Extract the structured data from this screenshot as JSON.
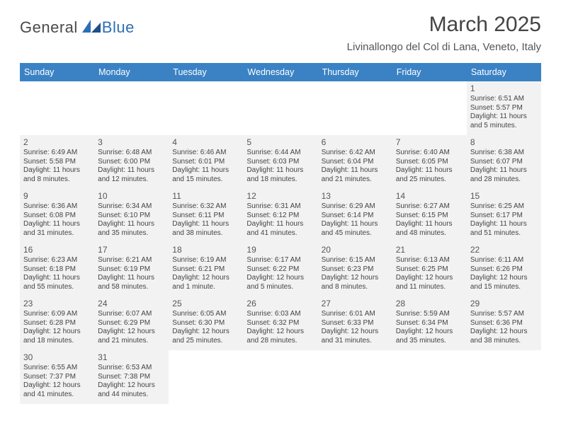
{
  "logo": {
    "part1": "General",
    "part2": "Blue"
  },
  "title": "March 2025",
  "location": "Livinallongo del Col di Lana, Veneto, Italy",
  "colors": {
    "header_bg": "#3b82c4",
    "cell_fill": "#f2f2f2",
    "border": "#3b82c4",
    "logo_accent": "#2d6fb5"
  },
  "weekdays": [
    "Sunday",
    "Monday",
    "Tuesday",
    "Wednesday",
    "Thursday",
    "Friday",
    "Saturday"
  ],
  "grid": [
    [
      {
        "blank": true
      },
      {
        "blank": true
      },
      {
        "blank": true
      },
      {
        "blank": true
      },
      {
        "blank": true
      },
      {
        "blank": true
      },
      {
        "day": "1",
        "sunrise": "Sunrise: 6:51 AM",
        "sunset": "Sunset: 5:57 PM",
        "daylight": "Daylight: 11 hours and 5 minutes."
      }
    ],
    [
      {
        "day": "2",
        "sunrise": "Sunrise: 6:49 AM",
        "sunset": "Sunset: 5:58 PM",
        "daylight": "Daylight: 11 hours and 8 minutes."
      },
      {
        "day": "3",
        "sunrise": "Sunrise: 6:48 AM",
        "sunset": "Sunset: 6:00 PM",
        "daylight": "Daylight: 11 hours and 12 minutes."
      },
      {
        "day": "4",
        "sunrise": "Sunrise: 6:46 AM",
        "sunset": "Sunset: 6:01 PM",
        "daylight": "Daylight: 11 hours and 15 minutes."
      },
      {
        "day": "5",
        "sunrise": "Sunrise: 6:44 AM",
        "sunset": "Sunset: 6:03 PM",
        "daylight": "Daylight: 11 hours and 18 minutes."
      },
      {
        "day": "6",
        "sunrise": "Sunrise: 6:42 AM",
        "sunset": "Sunset: 6:04 PM",
        "daylight": "Daylight: 11 hours and 21 minutes."
      },
      {
        "day": "7",
        "sunrise": "Sunrise: 6:40 AM",
        "sunset": "Sunset: 6:05 PM",
        "daylight": "Daylight: 11 hours and 25 minutes."
      },
      {
        "day": "8",
        "sunrise": "Sunrise: 6:38 AM",
        "sunset": "Sunset: 6:07 PM",
        "daylight": "Daylight: 11 hours and 28 minutes."
      }
    ],
    [
      {
        "day": "9",
        "sunrise": "Sunrise: 6:36 AM",
        "sunset": "Sunset: 6:08 PM",
        "daylight": "Daylight: 11 hours and 31 minutes."
      },
      {
        "day": "10",
        "sunrise": "Sunrise: 6:34 AM",
        "sunset": "Sunset: 6:10 PM",
        "daylight": "Daylight: 11 hours and 35 minutes."
      },
      {
        "day": "11",
        "sunrise": "Sunrise: 6:32 AM",
        "sunset": "Sunset: 6:11 PM",
        "daylight": "Daylight: 11 hours and 38 minutes."
      },
      {
        "day": "12",
        "sunrise": "Sunrise: 6:31 AM",
        "sunset": "Sunset: 6:12 PM",
        "daylight": "Daylight: 11 hours and 41 minutes."
      },
      {
        "day": "13",
        "sunrise": "Sunrise: 6:29 AM",
        "sunset": "Sunset: 6:14 PM",
        "daylight": "Daylight: 11 hours and 45 minutes."
      },
      {
        "day": "14",
        "sunrise": "Sunrise: 6:27 AM",
        "sunset": "Sunset: 6:15 PM",
        "daylight": "Daylight: 11 hours and 48 minutes."
      },
      {
        "day": "15",
        "sunrise": "Sunrise: 6:25 AM",
        "sunset": "Sunset: 6:17 PM",
        "daylight": "Daylight: 11 hours and 51 minutes."
      }
    ],
    [
      {
        "day": "16",
        "sunrise": "Sunrise: 6:23 AM",
        "sunset": "Sunset: 6:18 PM",
        "daylight": "Daylight: 11 hours and 55 minutes."
      },
      {
        "day": "17",
        "sunrise": "Sunrise: 6:21 AM",
        "sunset": "Sunset: 6:19 PM",
        "daylight": "Daylight: 11 hours and 58 minutes."
      },
      {
        "day": "18",
        "sunrise": "Sunrise: 6:19 AM",
        "sunset": "Sunset: 6:21 PM",
        "daylight": "Daylight: 12 hours and 1 minute."
      },
      {
        "day": "19",
        "sunrise": "Sunrise: 6:17 AM",
        "sunset": "Sunset: 6:22 PM",
        "daylight": "Daylight: 12 hours and 5 minutes."
      },
      {
        "day": "20",
        "sunrise": "Sunrise: 6:15 AM",
        "sunset": "Sunset: 6:23 PM",
        "daylight": "Daylight: 12 hours and 8 minutes."
      },
      {
        "day": "21",
        "sunrise": "Sunrise: 6:13 AM",
        "sunset": "Sunset: 6:25 PM",
        "daylight": "Daylight: 12 hours and 11 minutes."
      },
      {
        "day": "22",
        "sunrise": "Sunrise: 6:11 AM",
        "sunset": "Sunset: 6:26 PM",
        "daylight": "Daylight: 12 hours and 15 minutes."
      }
    ],
    [
      {
        "day": "23",
        "sunrise": "Sunrise: 6:09 AM",
        "sunset": "Sunset: 6:28 PM",
        "daylight": "Daylight: 12 hours and 18 minutes."
      },
      {
        "day": "24",
        "sunrise": "Sunrise: 6:07 AM",
        "sunset": "Sunset: 6:29 PM",
        "daylight": "Daylight: 12 hours and 21 minutes."
      },
      {
        "day": "25",
        "sunrise": "Sunrise: 6:05 AM",
        "sunset": "Sunset: 6:30 PM",
        "daylight": "Daylight: 12 hours and 25 minutes."
      },
      {
        "day": "26",
        "sunrise": "Sunrise: 6:03 AM",
        "sunset": "Sunset: 6:32 PM",
        "daylight": "Daylight: 12 hours and 28 minutes."
      },
      {
        "day": "27",
        "sunrise": "Sunrise: 6:01 AM",
        "sunset": "Sunset: 6:33 PM",
        "daylight": "Daylight: 12 hours and 31 minutes."
      },
      {
        "day": "28",
        "sunrise": "Sunrise: 5:59 AM",
        "sunset": "Sunset: 6:34 PM",
        "daylight": "Daylight: 12 hours and 35 minutes."
      },
      {
        "day": "29",
        "sunrise": "Sunrise: 5:57 AM",
        "sunset": "Sunset: 6:36 PM",
        "daylight": "Daylight: 12 hours and 38 minutes."
      }
    ],
    [
      {
        "day": "30",
        "sunrise": "Sunrise: 6:55 AM",
        "sunset": "Sunset: 7:37 PM",
        "daylight": "Daylight: 12 hours and 41 minutes."
      },
      {
        "day": "31",
        "sunrise": "Sunrise: 6:53 AM",
        "sunset": "Sunset: 7:38 PM",
        "daylight": "Daylight: 12 hours and 44 minutes."
      },
      {
        "blank": true
      },
      {
        "blank": true
      },
      {
        "blank": true
      },
      {
        "blank": true
      },
      {
        "blank": true
      }
    ]
  ]
}
